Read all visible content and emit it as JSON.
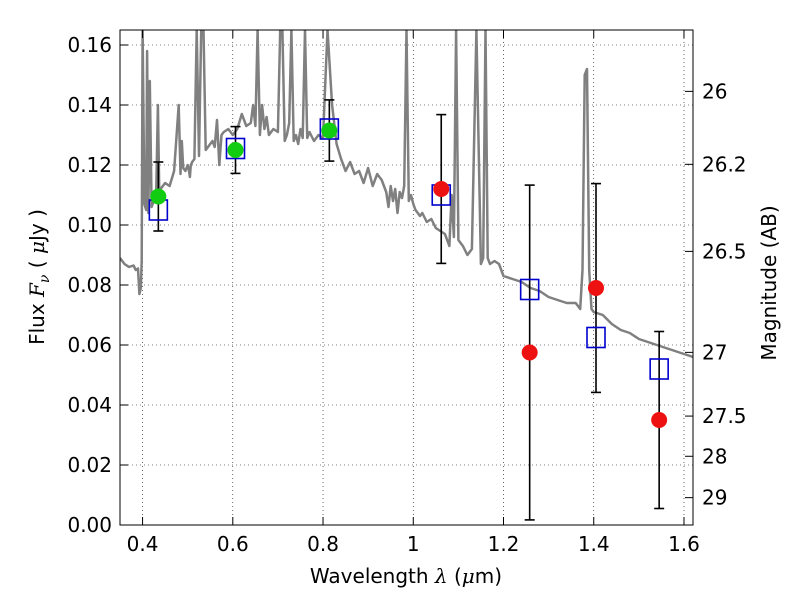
{
  "chart_data": {
    "type": "scatter",
    "xlabel": {
      "prefix": "Wavelength ",
      "symbol": "λ",
      "unit_open": " (",
      "unit_symbol": "μ",
      "unit_rest": "m)"
    },
    "ylabel": {
      "prefix": "Flux ",
      "symbol": "F",
      "subscript": "ν",
      "unit_open": " ( ",
      "unit_symbol": "μ",
      "unit_rest": "Jy )"
    },
    "y2label": "Magnitude (AB)",
    "xlim": [
      0.35,
      1.62
    ],
    "ylim": [
      0.0,
      0.165
    ],
    "x_ticks": [
      {
        "value": 0.4,
        "label": "0.4"
      },
      {
        "value": 0.6,
        "label": "0.6"
      },
      {
        "value": 0.8,
        "label": "0.8"
      },
      {
        "value": 1.0,
        "label": "1"
      },
      {
        "value": 1.2,
        "label": "1.2"
      },
      {
        "value": 1.4,
        "label": "1.4"
      },
      {
        "value": 1.6,
        "label": "1.6"
      }
    ],
    "y_ticks": [
      {
        "value": 0.0,
        "label": "0.00"
      },
      {
        "value": 0.02,
        "label": "0.02"
      },
      {
        "value": 0.04,
        "label": "0.04"
      },
      {
        "value": 0.06,
        "label": "0.06"
      },
      {
        "value": 0.08,
        "label": "0.08"
      },
      {
        "value": 0.1,
        "label": "0.10"
      },
      {
        "value": 0.12,
        "label": "0.12"
      },
      {
        "value": 0.14,
        "label": "0.14"
      },
      {
        "value": 0.16,
        "label": "0.16"
      }
    ],
    "mag_ticks": [
      {
        "value": 26,
        "label": "26"
      },
      {
        "value": 26.2,
        "label": "26.2"
      },
      {
        "value": 26.5,
        "label": "26.5"
      },
      {
        "value": 27,
        "label": "27"
      },
      {
        "value": 27.5,
        "label": "27.5"
      },
      {
        "value": 28,
        "label": "28"
      },
      {
        "value": 29,
        "label": "29"
      }
    ],
    "mag_zero_point": 23.9,
    "grid": true,
    "grid_style": "dotted",
    "series": [
      {
        "marker": "square-open",
        "color": "#0000cc",
        "points": [
          {
            "x": 0.435,
            "y": 0.105
          },
          {
            "x": 0.606,
            "y": 0.1255
          },
          {
            "x": 0.814,
            "y": 0.132
          },
          {
            "x": 1.062,
            "y": 0.11
          },
          {
            "x": 1.258,
            "y": 0.0785
          },
          {
            "x": 1.405,
            "y": 0.0625
          },
          {
            "x": 1.545,
            "y": 0.052
          }
        ]
      },
      {
        "marker": "circle-filled",
        "color": "#11cc11",
        "points": [
          {
            "x": 0.435,
            "y": 0.1095,
            "err": 0.0115
          },
          {
            "x": 0.606,
            "y": 0.125,
            "err": 0.0078
          },
          {
            "x": 0.814,
            "y": 0.1315,
            "err": 0.0102
          }
        ]
      },
      {
        "marker": "circle-filled",
        "color": "#ee1111",
        "points": [
          {
            "x": 1.062,
            "y": 0.112,
            "err": 0.0248
          },
          {
            "x": 1.258,
            "y": 0.0575,
            "err": 0.0558
          },
          {
            "x": 1.405,
            "y": 0.079,
            "err": 0.0348
          },
          {
            "x": 1.545,
            "y": 0.035,
            "err": 0.0295
          }
        ]
      }
    ],
    "spectrum": {
      "color": "#808080",
      "x": [
        0.35,
        0.36,
        0.37,
        0.38,
        0.385,
        0.39,
        0.393,
        0.396,
        0.398,
        0.4,
        0.404,
        0.408,
        0.41,
        0.413,
        0.416,
        0.42,
        0.425,
        0.43,
        0.434,
        0.437,
        0.44,
        0.45,
        0.46,
        0.47,
        0.48,
        0.484,
        0.487,
        0.49,
        0.495,
        0.5,
        0.503,
        0.505,
        0.507,
        0.51,
        0.515,
        0.52,
        0.525,
        0.53,
        0.535,
        0.54,
        0.545,
        0.55,
        0.555,
        0.56,
        0.565,
        0.57,
        0.575,
        0.58,
        0.59,
        0.6,
        0.61,
        0.62,
        0.63,
        0.64,
        0.645,
        0.65,
        0.655,
        0.66,
        0.665,
        0.67,
        0.675,
        0.68,
        0.69,
        0.7,
        0.705,
        0.71,
        0.715,
        0.72,
        0.725,
        0.73,
        0.735,
        0.74,
        0.745,
        0.75,
        0.755,
        0.76,
        0.765,
        0.77,
        0.78,
        0.79,
        0.8,
        0.81,
        0.82,
        0.83,
        0.84,
        0.85,
        0.86,
        0.87,
        0.88,
        0.89,
        0.9,
        0.91,
        0.92,
        0.93,
        0.94,
        0.945,
        0.95,
        0.955,
        0.96,
        0.965,
        0.97,
        0.975,
        0.98,
        0.985,
        0.99,
        0.995,
        1.0,
        1.005,
        1.01,
        1.015,
        1.02,
        1.03,
        1.04,
        1.05,
        1.06,
        1.07,
        1.08,
        1.085,
        1.09,
        1.095,
        1.1,
        1.105,
        1.11,
        1.12,
        1.13,
        1.14,
        1.15,
        1.155,
        1.16,
        1.165,
        1.17,
        1.18,
        1.19,
        1.2,
        1.22,
        1.24,
        1.26,
        1.28,
        1.3,
        1.32,
        1.34,
        1.36,
        1.37,
        1.375,
        1.38,
        1.385,
        1.39,
        1.395,
        1.4,
        1.42,
        1.44,
        1.46,
        1.48,
        1.5,
        1.52,
        1.54,
        1.56,
        1.58,
        1.6,
        1.62
      ],
      "y": [
        0.089,
        0.087,
        0.086,
        0.0865,
        0.085,
        0.0855,
        0.077,
        0.079,
        0.088,
        0.165,
        0.107,
        0.105,
        0.158,
        0.104,
        0.148,
        0.106,
        0.108,
        0.109,
        0.14,
        0.11,
        0.112,
        0.114,
        0.113,
        0.118,
        0.14,
        0.117,
        0.128,
        0.119,
        0.118,
        0.12,
        0.118,
        0.116,
        0.12,
        0.121,
        0.122,
        0.165,
        0.123,
        0.165,
        0.165,
        0.125,
        0.126,
        0.127,
        0.128,
        0.126,
        0.135,
        0.12,
        0.13,
        0.131,
        0.132,
        0.13,
        0.132,
        0.137,
        0.133,
        0.134,
        0.14,
        0.133,
        0.165,
        0.13,
        0.14,
        0.132,
        0.136,
        0.13,
        0.132,
        0.131,
        0.165,
        0.165,
        0.128,
        0.13,
        0.134,
        0.165,
        0.128,
        0.13,
        0.127,
        0.132,
        0.129,
        0.165,
        0.129,
        0.131,
        0.128,
        0.13,
        0.129,
        0.165,
        0.14,
        0.127,
        0.122,
        0.118,
        0.121,
        0.117,
        0.118,
        0.114,
        0.119,
        0.113,
        0.117,
        0.115,
        0.111,
        0.106,
        0.113,
        0.108,
        0.112,
        0.104,
        0.111,
        0.109,
        0.113,
        0.165,
        0.108,
        0.11,
        0.107,
        0.105,
        0.104,
        0.103,
        0.104,
        0.101,
        0.102,
        0.099,
        0.098,
        0.097,
        0.093,
        0.11,
        0.096,
        0.165,
        0.095,
        0.094,
        0.093,
        0.09,
        0.092,
        0.165,
        0.087,
        0.089,
        0.165,
        0.089,
        0.087,
        0.088,
        0.087,
        0.083,
        0.082,
        0.081,
        0.079,
        0.078,
        0.076,
        0.075,
        0.074,
        0.074,
        0.072,
        0.085,
        0.15,
        0.152,
        0.085,
        0.072,
        0.071,
        0.07,
        0.067,
        0.065,
        0.064,
        0.062,
        0.061,
        0.06,
        0.059,
        0.058,
        0.057,
        0.056
      ]
    }
  }
}
